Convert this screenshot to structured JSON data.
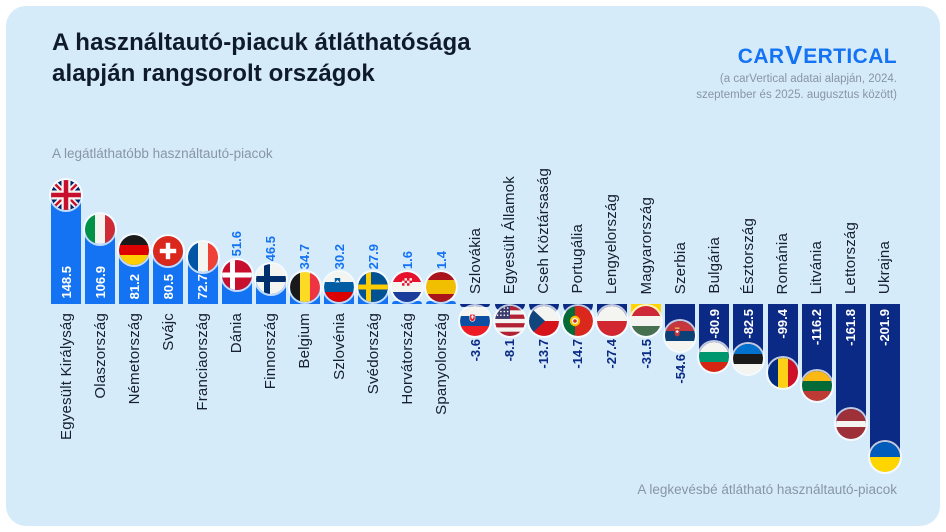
{
  "header": {
    "title_line1": "A használtautó-piacuk átláthatósága",
    "title_line2": "alapján rangsorolt országok",
    "logo_pre": "CAR",
    "logo_v": "V",
    "logo_post": "ERTICAL",
    "note_line1": "(a carVertical adatai alapján, 2024.",
    "note_line2": "szeptember és 2025. augusztus között)"
  },
  "captions": {
    "top_left": "A legátláthatóbb használtautó-piacok",
    "bottom_right": "A legkevésbé átlátható használtautó-piacok"
  },
  "colors": {
    "card_bg": "#D6EBFA",
    "positive_bar": "#1473F2",
    "negative_bar": "#0A2A85",
    "highlight_bar": "#FFD400",
    "value_inside_text": "#FFFFFF",
    "title_text": "#0F1B2D",
    "caption_text": "#8796A6",
    "label_text": "#16202E",
    "logo_blue": "#1473F2"
  },
  "chart_data": {
    "type": "bar",
    "title": "A használtautó-piacuk átláthatósága alapján rangsorolt országok",
    "orientation": "vertical-diverging-around-zero",
    "grid": false,
    "legend": false,
    "ylim": [
      -210,
      155
    ],
    "highlight_index": 17,
    "highlight_label": "Magyarország",
    "categories": [
      "Egyesült Királyság",
      "Olaszország",
      "Németország",
      "Svájc",
      "Franciaország",
      "Dánia",
      "Finnország",
      "Belgium",
      "Szlovénia",
      "Svédország",
      "Horvátország",
      "Spanyolország",
      "Szlovákia",
      "Egyesült Államok",
      "Cseh Köztársaság",
      "Portugália",
      "Lengyelország",
      "Magyarország",
      "Szerbia",
      "Bulgária",
      "Észtország",
      "Románia",
      "Litvánia",
      "Lettország",
      "Ukrajna"
    ],
    "values": [
      148.5,
      106.9,
      81.2,
      80.5,
      72.7,
      51.6,
      46.5,
      34.7,
      30.2,
      27.9,
      1.6,
      1.4,
      -3.6,
      -8.1,
      -13.7,
      -14.7,
      -27.4,
      -31.5,
      -54.6,
      -80.9,
      -82.5,
      -99.4,
      -116.2,
      -161.8,
      -201.9
    ],
    "flags": [
      "uk",
      "italy",
      "germany",
      "switzerland",
      "france",
      "denmark",
      "finland",
      "belgium",
      "slovenia",
      "sweden",
      "croatia",
      "spain",
      "slovakia",
      "usa",
      "czech",
      "portugal",
      "poland",
      "hungary",
      "serbia",
      "bulgaria",
      "estonia",
      "romania",
      "lithuania",
      "latvia",
      "ukraine"
    ]
  }
}
